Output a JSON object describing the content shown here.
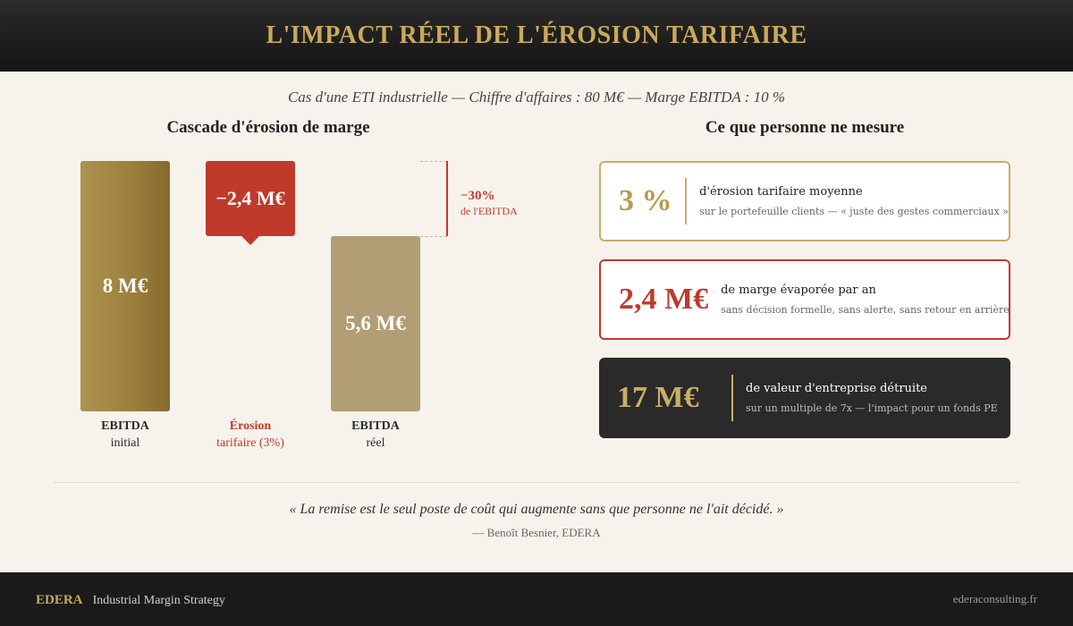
{
  "header": {
    "title": "L'IMPACT RÉEL DE L'ÉROSION TARIFAIRE"
  },
  "subtitle": "Cas d'une ETI industrielle — Chiffre d'affaires : 80 M€ — Marge EBITDA : 10 %",
  "chart_data": {
    "type": "bar",
    "variant": "waterfall",
    "title": "Cascade d'érosion de marge",
    "unit": "M€",
    "categories": [
      {
        "line1": "EBITDA",
        "line2": "initial"
      },
      {
        "line1": "Érosion",
        "line2": "tarifaire (3%)"
      },
      {
        "line1": "EBITDA",
        "line2": "réel"
      }
    ],
    "values": [
      8,
      -2.4,
      5.6
    ],
    "value_labels": [
      "8 M€",
      "−2,4 M€",
      "5,6 M€"
    ],
    "annotation": {
      "value": "−30%",
      "label": "de l'EBITDA"
    },
    "colors": [
      "#9a7f3c",
      "#c03a2b",
      "#b19e74"
    ]
  },
  "right_panel": {
    "title": "Ce que personne ne mesure",
    "cards": [
      {
        "value": "3 %",
        "line1": "d'érosion tarifaire moyenne",
        "line2": "sur le portefeuille clients — « juste des gestes commerciaux »"
      },
      {
        "value": "2,4 M€",
        "line1": "de marge évaporée par an",
        "line2": "sans décision formelle, sans alerte, sans retour en arrière"
      },
      {
        "value": "17 M€",
        "line1": "de valeur d'entreprise détruite",
        "line2": "sur un multiple de 7x — l'impact pour un fonds PE"
      }
    ]
  },
  "quote": {
    "text": "« La remise est le seul poste de coût qui augmente sans que personne ne l'ait décidé. »",
    "author": "— Benoît Besnier, EDERA"
  },
  "footer": {
    "brand": "EDERA",
    "tagline": "Industrial Margin Strategy",
    "site": "ederaconsulting.fr"
  }
}
